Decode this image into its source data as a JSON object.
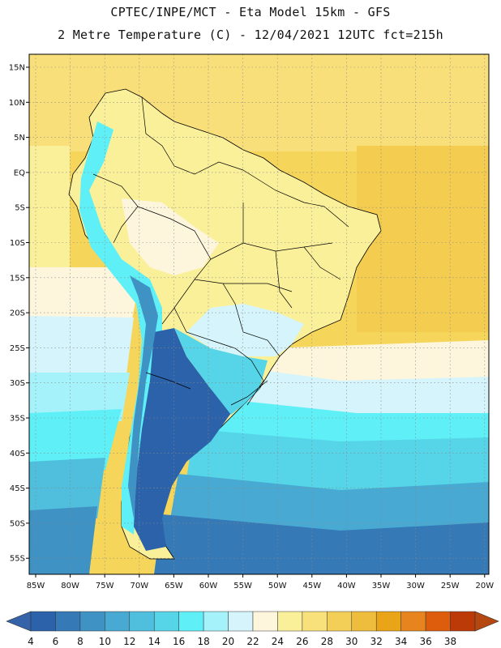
{
  "header": {
    "line1": "CPTEC/INPE/MCT -  Eta Model 15km - GFS",
    "line2": "2 Metre Temperature (C) - 12/04/2021 12UTC fct=215h"
  },
  "map": {
    "lat_labels": [
      "15N",
      "10N",
      "5N",
      "EQ",
      "5S",
      "10S",
      "15S",
      "20S",
      "25S",
      "30S",
      "35S",
      "40S",
      "45S",
      "50S",
      "55S"
    ],
    "lon_labels": [
      "85W",
      "80W",
      "75W",
      "70W",
      "65W",
      "60W",
      "55W",
      "50W",
      "45W",
      "40W",
      "35W",
      "30W",
      "25W",
      "20W"
    ],
    "background_color": "#f6d65a"
  },
  "colorbar": {
    "labels": [
      "4",
      "6",
      "8",
      "10",
      "12",
      "14",
      "16",
      "18",
      "20",
      "22",
      "24",
      "26",
      "28",
      "30",
      "32",
      "34",
      "36",
      "38"
    ],
    "colors": [
      "#2b62a9",
      "#3579b6",
      "#3f92c4",
      "#48a9d3",
      "#50bfde",
      "#57d5e8",
      "#5ef0f6",
      "#a6f2fb",
      "#d6f4fb",
      "#fdf6dc",
      "#fbf09a",
      "#f8e07a",
      "#f4cf57",
      "#efbd3d",
      "#eaa418",
      "#e8841e",
      "#de5d0d",
      "#bb3a08"
    ],
    "under_color": "#3563a9",
    "over_color": "#b54810"
  }
}
